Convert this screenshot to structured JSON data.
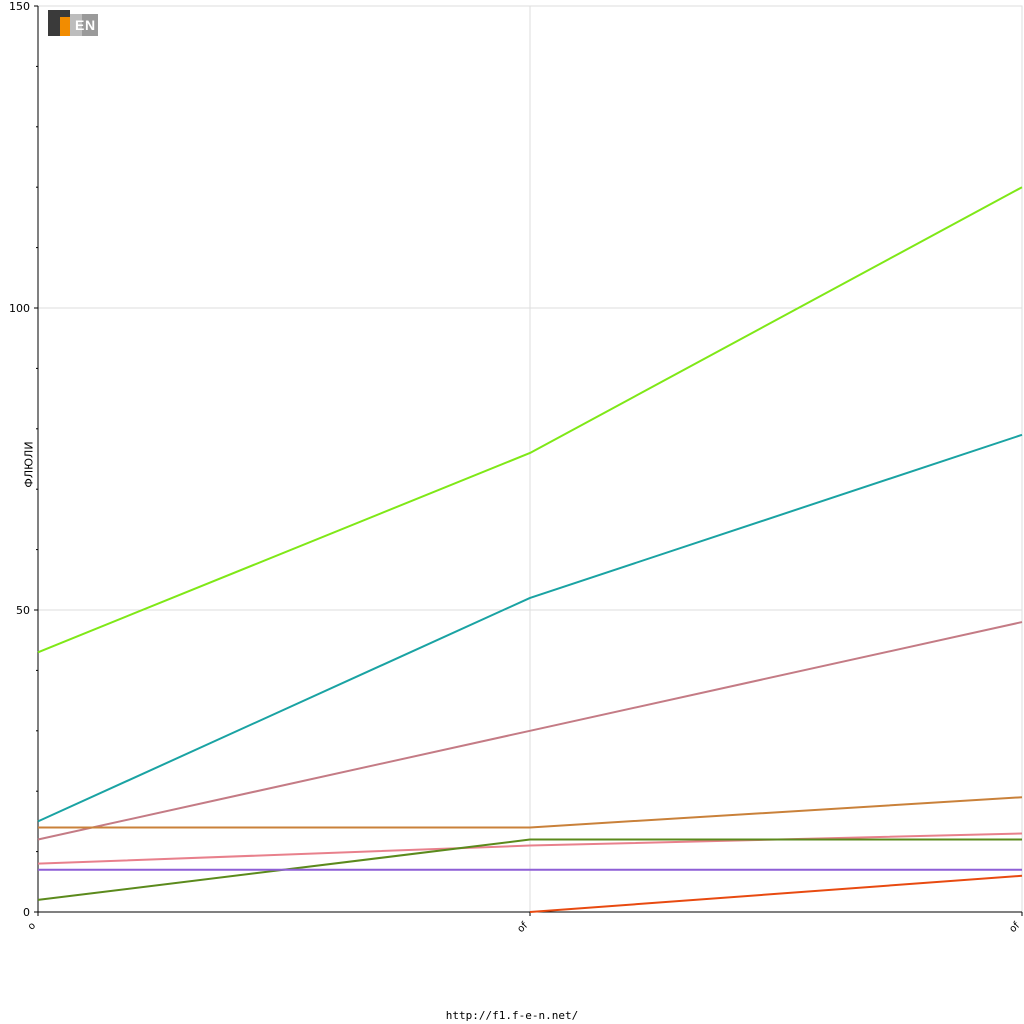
{
  "chart_data": {
    "type": "line",
    "title": "",
    "xlabel": "",
    "ylabel": "ФЛЮЛИ",
    "categories": [
      "o",
      "of",
      "of"
    ],
    "ylim": [
      0,
      150
    ],
    "yticks": [
      0,
      50,
      100,
      150
    ],
    "grid": true,
    "legend": "none",
    "series": [
      {
        "color": "#7fe817",
        "values": [
          43,
          76,
          120
        ]
      },
      {
        "color": "#1aa3a3",
        "values": [
          15,
          52,
          79
        ]
      },
      {
        "color": "#c47b85",
        "values": [
          12,
          30,
          48
        ]
      },
      {
        "color": "#c9813a",
        "values": [
          14,
          14,
          19
        ]
      },
      {
        "color": "#e8808c",
        "values": [
          8,
          11,
          13
        ]
      },
      {
        "color": "#5b8a1c",
        "values": [
          2,
          12,
          12
        ]
      },
      {
        "color": "#8e5fd6",
        "values": [
          7,
          7,
          7
        ]
      },
      {
        "color": "#e84a10",
        "values": [
          null,
          0,
          6
        ]
      }
    ]
  },
  "logo": {
    "text": "F1EN",
    "colors": {
      "dark": "#333333",
      "orange": "#f28c00",
      "grey": "#9a9a9a"
    }
  },
  "footer": {
    "url": "http://f1.f-e-n.net/"
  }
}
